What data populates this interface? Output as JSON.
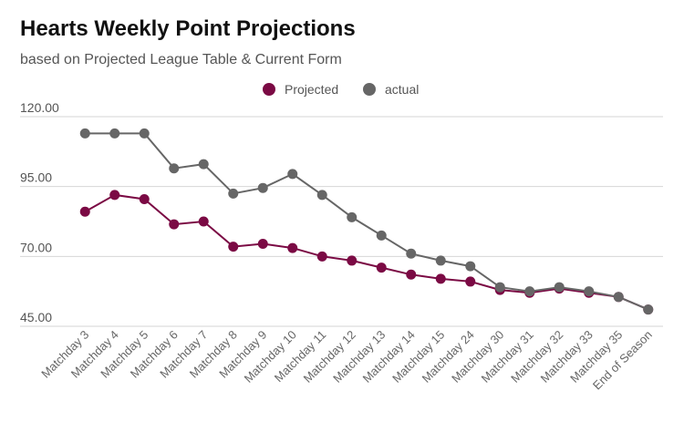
{
  "chart_data": {
    "type": "line",
    "title": "Hearts Weekly Point Projections",
    "subtitle": "based on Projected League Table & Current Form",
    "xlabel": "",
    "ylabel": "",
    "categories": [
      "Matchday 3",
      "Matchday 4",
      "Matchday 5",
      "Matchday 6",
      "Matchday 7",
      "Matchday 8",
      "Matchday 9",
      "Matchday 10",
      "Matchday 11",
      "Matchday 12",
      "Matchday 13",
      "Matchday 14",
      "Matchday 15",
      "Matchday 24",
      "Matchday 30",
      "Matchday 31",
      "Matchday 32",
      "Matchday 33",
      "Matchday 35",
      "End of Season"
    ],
    "y_ticks": [
      "45.00",
      "70.00",
      "95.00",
      "120.00"
    ],
    "ylim": [
      45,
      120
    ],
    "grid": true,
    "legend_position": "top-center",
    "series": [
      {
        "name": "Projected",
        "color": "#7b0a44",
        "values": [
          86,
          92,
          90.5,
          81.5,
          82.5,
          73.5,
          74.5,
          73,
          70,
          68.5,
          66,
          63.5,
          62,
          61,
          58,
          57,
          58.5,
          57,
          55.5,
          51
        ]
      },
      {
        "name": "actual",
        "color": "#666666",
        "values": [
          114,
          114,
          114,
          101.5,
          103,
          92.5,
          94.5,
          99.5,
          92,
          84,
          77.5,
          71,
          68.5,
          66.5,
          59,
          57.5,
          59,
          57.5,
          55.5,
          51
        ]
      }
    ]
  }
}
